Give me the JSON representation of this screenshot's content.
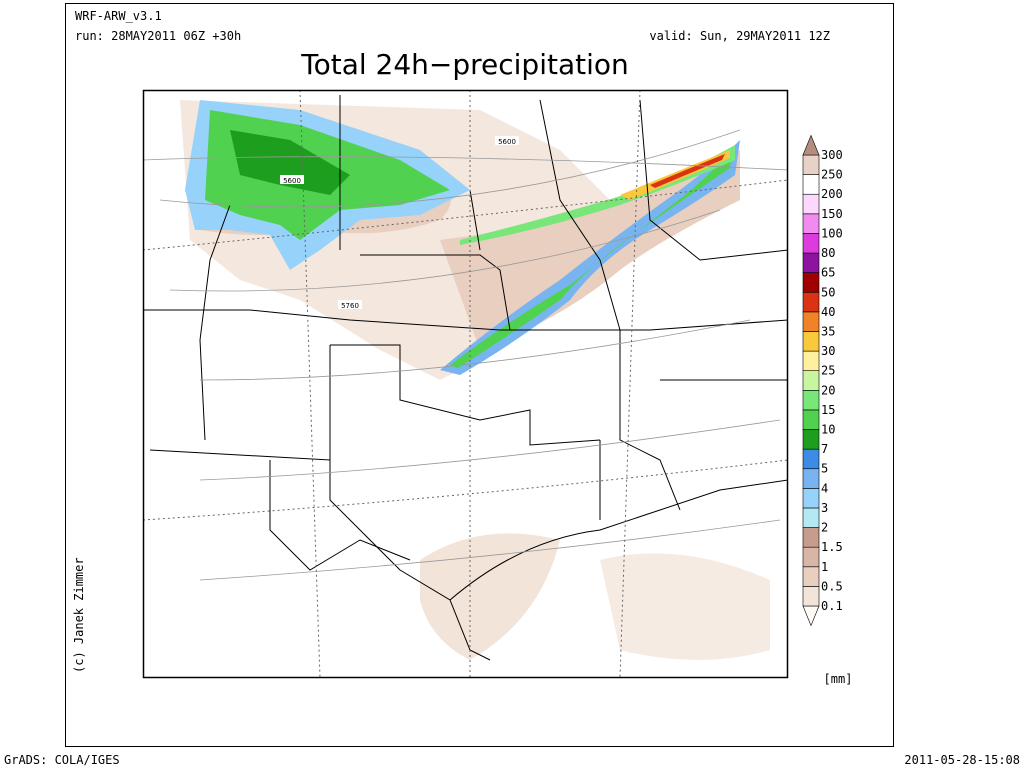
{
  "header": {
    "model": "WRF-ARW_v3.1",
    "run": "run: 28MAY2011 06Z +30h",
    "valid": "valid: Sun, 29MAY2011 12Z",
    "title": "Total 24h−precipitation"
  },
  "map": {
    "contour_labels": [
      "5600",
      "5600",
      "5760"
    ]
  },
  "colorbar": {
    "unit": "[mm]",
    "levels": [
      0.1,
      0.5,
      1,
      1.5,
      2,
      3,
      4,
      5,
      7,
      10,
      15,
      20,
      25,
      30,
      35,
      40,
      50,
      65,
      80,
      100,
      150,
      200,
      250,
      300
    ],
    "colors": [
      "#fefaf6",
      "#f3e4da",
      "#e8cfc0",
      "#d8b6a6",
      "#c69c8c",
      "#b4e8f2",
      "#96d2fa",
      "#78b4f0",
      "#3c8ce6",
      "#1e9e1e",
      "#50d250",
      "#78e678",
      "#c8f5a0",
      "#fff0a0",
      "#fac83c",
      "#f08228",
      "#dc3214",
      "#a00000",
      "#8c14a0",
      "#dc3cdc",
      "#f08cf0",
      "#fcd8fc",
      "#ffffff",
      "#e8d2c8",
      "#b48c80"
    ]
  },
  "credit": "(c) Janek Zimmer",
  "footer": {
    "left": "GrADS: COLA/IGES",
    "right": "2011-05-28-15:08"
  }
}
